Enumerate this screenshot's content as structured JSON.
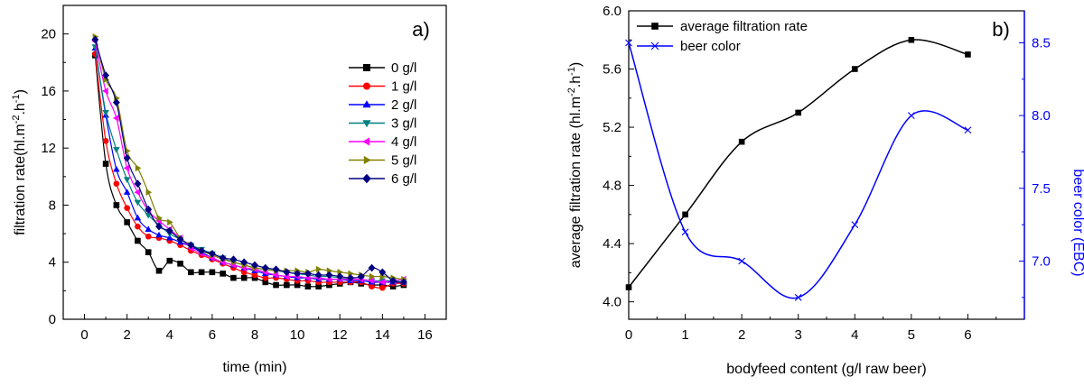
{
  "chart_data": [
    {
      "type": "line",
      "panel_label": "a)",
      "xlabel": "time (min)",
      "ylabel": "filtration rate(hl.m-2.h-1)",
      "ylabel_parts": {
        "pre": "filtration rate(hl.m",
        "exp1": "-2",
        "mid": ".h",
        "exp2": "-1",
        "post": ")"
      },
      "xlim": [
        -1,
        17
      ],
      "ylim": [
        0,
        22
      ],
      "xticks": [
        0,
        2,
        4,
        6,
        8,
        10,
        12,
        14,
        16
      ],
      "yticks": [
        0,
        4,
        8,
        12,
        16,
        20
      ],
      "legend_position": "top-right",
      "series": [
        {
          "name": "0 g/l",
          "color": "#000000",
          "marker": "square",
          "x": [
            0.5,
            1,
            1.5,
            2,
            2.5,
            3,
            3.5,
            4,
            4.5,
            5,
            5.5,
            6,
            6.5,
            7,
            7.5,
            8,
            8.5,
            9,
            9.5,
            10,
            10.5,
            11,
            11.5,
            12,
            12.5,
            13,
            13.5,
            14,
            14.5,
            15
          ],
          "y": [
            18.5,
            10.9,
            8.0,
            6.8,
            5.5,
            4.7,
            3.4,
            4.1,
            3.9,
            3.3,
            3.3,
            3.3,
            3.2,
            2.9,
            2.9,
            2.9,
            2.6,
            2.4,
            2.4,
            2.4,
            2.3,
            2.3,
            2.4,
            2.5,
            2.6,
            2.5,
            2.4,
            2.4,
            2.3,
            2.4
          ]
        },
        {
          "name": "1 g/l",
          "color": "#ff0000",
          "marker": "circle",
          "x": [
            0.5,
            1,
            1.5,
            2,
            2.5,
            3,
            3.5,
            4,
            4.5,
            5,
            5.5,
            6,
            6.5,
            7,
            7.5,
            8,
            8.5,
            9,
            9.5,
            10,
            10.5,
            11,
            11.5,
            12,
            12.5,
            13,
            13.5,
            14,
            14.5,
            15
          ],
          "y": [
            18.6,
            12.5,
            9.5,
            7.8,
            6.5,
            5.8,
            5.7,
            5.5,
            5.2,
            4.8,
            4.5,
            4.2,
            3.9,
            3.6,
            3.3,
            3.1,
            2.9,
            2.9,
            2.8,
            2.7,
            2.7,
            2.6,
            2.6,
            2.6,
            2.6,
            2.6,
            2.3,
            2.2,
            2.5,
            2.5
          ]
        },
        {
          "name": "2 g/l",
          "color": "#0000ff",
          "marker": "triangle-up",
          "x": [
            0.5,
            1,
            1.5,
            2,
            2.5,
            3,
            3.5,
            4,
            4.5,
            5,
            5.5,
            6,
            6.5,
            7,
            7.5,
            8,
            8.5,
            9,
            9.5,
            10,
            10.5,
            11,
            11.5,
            12,
            12.5,
            13,
            13.5,
            14,
            14.5,
            15
          ],
          "y": [
            19.0,
            14.3,
            10.5,
            8.9,
            7.1,
            6.3,
            5.9,
            5.7,
            5.4,
            5.1,
            4.7,
            4.3,
            4.0,
            3.8,
            3.6,
            3.4,
            3.2,
            3.1,
            3.0,
            2.9,
            2.9,
            2.8,
            2.8,
            2.8,
            2.7,
            2.7,
            2.6,
            2.6,
            2.6,
            2.6
          ]
        },
        {
          "name": "3 g/l",
          "color": "#008080",
          "marker": "triangle-down",
          "x": [
            0.5,
            1,
            1.5,
            2,
            2.5,
            3,
            3.5,
            4,
            4.5,
            5,
            5.5,
            6,
            6.5,
            7,
            7.5,
            8,
            8.5,
            9,
            9.5,
            10,
            10.5,
            11,
            11.5,
            12,
            12.5,
            13,
            13.5,
            14,
            14.5,
            15
          ],
          "y": [
            19.1,
            14.5,
            11.9,
            9.8,
            8.2,
            7.3,
            6.6,
            6.0,
            5.6,
            5.2,
            4.9,
            4.6,
            4.3,
            4.0,
            3.8,
            3.6,
            3.5,
            3.4,
            3.3,
            3.2,
            3.1,
            3.0,
            3.0,
            2.9,
            2.8,
            2.8,
            2.7,
            2.7,
            2.7,
            2.6
          ]
        },
        {
          "name": "4 g/l",
          "color": "#ff00ff",
          "marker": "triangle-left",
          "x": [
            0.5,
            1,
            1.5,
            2,
            2.5,
            3,
            3.5,
            4,
            4.5,
            5,
            5.5,
            6,
            6.5,
            7,
            7.5,
            8,
            8.5,
            9,
            9.5,
            10,
            10.5,
            11,
            11.5,
            12,
            12.5,
            13,
            13.5,
            14,
            14.5,
            15
          ],
          "y": [
            19.5,
            16.0,
            14.1,
            10.6,
            8.9,
            7.6,
            6.9,
            6.3,
            5.7,
            5.0,
            4.6,
            4.3,
            4.0,
            3.8,
            3.6,
            3.5,
            3.3,
            3.1,
            3.0,
            3.0,
            2.9,
            2.9,
            2.8,
            2.8,
            2.8,
            2.8,
            2.7,
            2.6,
            2.7,
            2.8
          ]
        },
        {
          "name": "5 g/l",
          "color": "#808000",
          "marker": "triangle-right",
          "x": [
            0.5,
            1,
            1.5,
            2,
            2.5,
            3,
            3.5,
            4,
            4.5,
            5,
            5.5,
            6,
            6.5,
            7,
            7.5,
            8,
            8.5,
            9,
            9.5,
            10,
            10.5,
            11,
            11.5,
            12,
            12.5,
            13,
            13.5,
            14,
            14.5,
            15
          ],
          "y": [
            19.8,
            16.8,
            15.5,
            11.8,
            10.6,
            8.9,
            7.1,
            6.8,
            5.7,
            5.2,
            4.8,
            4.5,
            4.2,
            4.0,
            3.8,
            3.6,
            3.5,
            3.4,
            3.4,
            3.4,
            3.3,
            3.5,
            3.4,
            3.3,
            3.2,
            3.1,
            3.0,
            3.0,
            2.9,
            2.8
          ]
        },
        {
          "name": "6 g/l",
          "color": "#000080",
          "marker": "diamond",
          "x": [
            0.5,
            1,
            1.5,
            2,
            2.5,
            3,
            3.5,
            4,
            4.5,
            5,
            5.5,
            6,
            6.5,
            7,
            7.5,
            8,
            8.5,
            9,
            9.5,
            10,
            10.5,
            11,
            11.5,
            12,
            12.5,
            13,
            13.5,
            14,
            14.5,
            15
          ],
          "y": [
            19.6,
            17.1,
            15.2,
            11.3,
            9.5,
            7.7,
            6.5,
            6.2,
            5.6,
            5.2,
            4.8,
            4.6,
            4.3,
            4.2,
            4.0,
            3.8,
            3.6,
            3.5,
            3.3,
            3.2,
            3.2,
            3.1,
            3.1,
            3.0,
            2.9,
            3.0,
            3.6,
            3.3,
            2.7,
            2.6
          ]
        }
      ]
    },
    {
      "type": "line",
      "panel_label": "b)",
      "xlabel": "bodyfeed content (g/l raw beer)",
      "ylabel": "average filtration rate (hl.m-2.h-1)",
      "ylabel_parts": {
        "pre": "average filtration rate (hl.m",
        "exp1": "-2",
        "mid": ".h",
        "exp2": "-1",
        "post": ")"
      },
      "y2label": "beer color (EBC)",
      "xlim": [
        0,
        7
      ],
      "ylim": [
        3.88,
        6.0
      ],
      "y2lim": [
        6.6,
        8.72
      ],
      "xticks": [
        0,
        1,
        2,
        3,
        4,
        5,
        6
      ],
      "yticks": [
        4.0,
        4.4,
        4.8,
        5.2,
        5.6,
        6.0
      ],
      "y2ticks": [
        7.0,
        7.5,
        8.0,
        8.5
      ],
      "legend_position": "top-left",
      "series": [
        {
          "name": "average filtration rate",
          "axis": "left",
          "color": "#000000",
          "marker": "square",
          "x": [
            0,
            1,
            2,
            3,
            4,
            5,
            6
          ],
          "y": [
            4.1,
            4.6,
            5.1,
            5.3,
            5.6,
            5.8,
            5.7
          ]
        },
        {
          "name": "beer color",
          "axis": "right",
          "color": "#0000ff",
          "marker": "x",
          "x": [
            0,
            1,
            2,
            3,
            4,
            5,
            6
          ],
          "y": [
            8.5,
            7.2,
            7.0,
            6.75,
            7.25,
            8.0,
            7.9
          ]
        }
      ]
    }
  ]
}
